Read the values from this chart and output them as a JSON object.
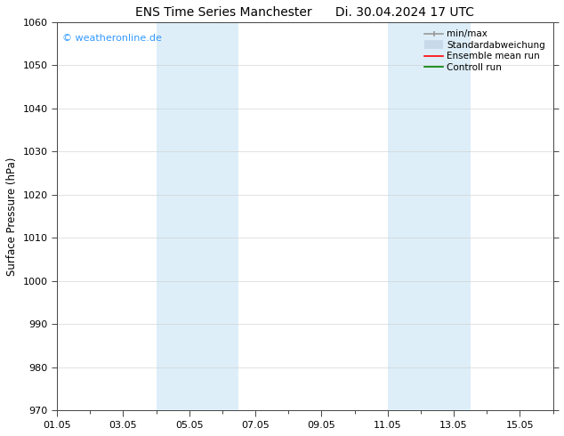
{
  "title": "ENS Time Series Manchester",
  "title_right": "Di. 30.04.2024 17 UTC",
  "ylabel": "Surface Pressure (hPa)",
  "ylim": [
    970,
    1060
  ],
  "yticks": [
    970,
    980,
    990,
    1000,
    1010,
    1020,
    1030,
    1040,
    1050,
    1060
  ],
  "xlim": [
    0,
    15
  ],
  "xtick_labels": [
    "01.05",
    "03.05",
    "05.05",
    "07.05",
    "09.05",
    "11.05",
    "13.05",
    "15.05"
  ],
  "xtick_positions": [
    0,
    2,
    4,
    6,
    8,
    10,
    12,
    14
  ],
  "shaded_bands": [
    {
      "x_start": 3.0,
      "x_end": 5.5
    },
    {
      "x_start": 10.0,
      "x_end": 12.5
    }
  ],
  "shaded_color": "#ddeef8",
  "watermark_text": "© weatheronline.de",
  "watermark_color": "#3399ff",
  "bg_color": "#ffffff",
  "grid_color": "#cccccc",
  "spine_color": "#444444",
  "title_fontsize": 10,
  "tick_fontsize": 8,
  "ylabel_fontsize": 8.5,
  "legend_fontsize": 7.5
}
